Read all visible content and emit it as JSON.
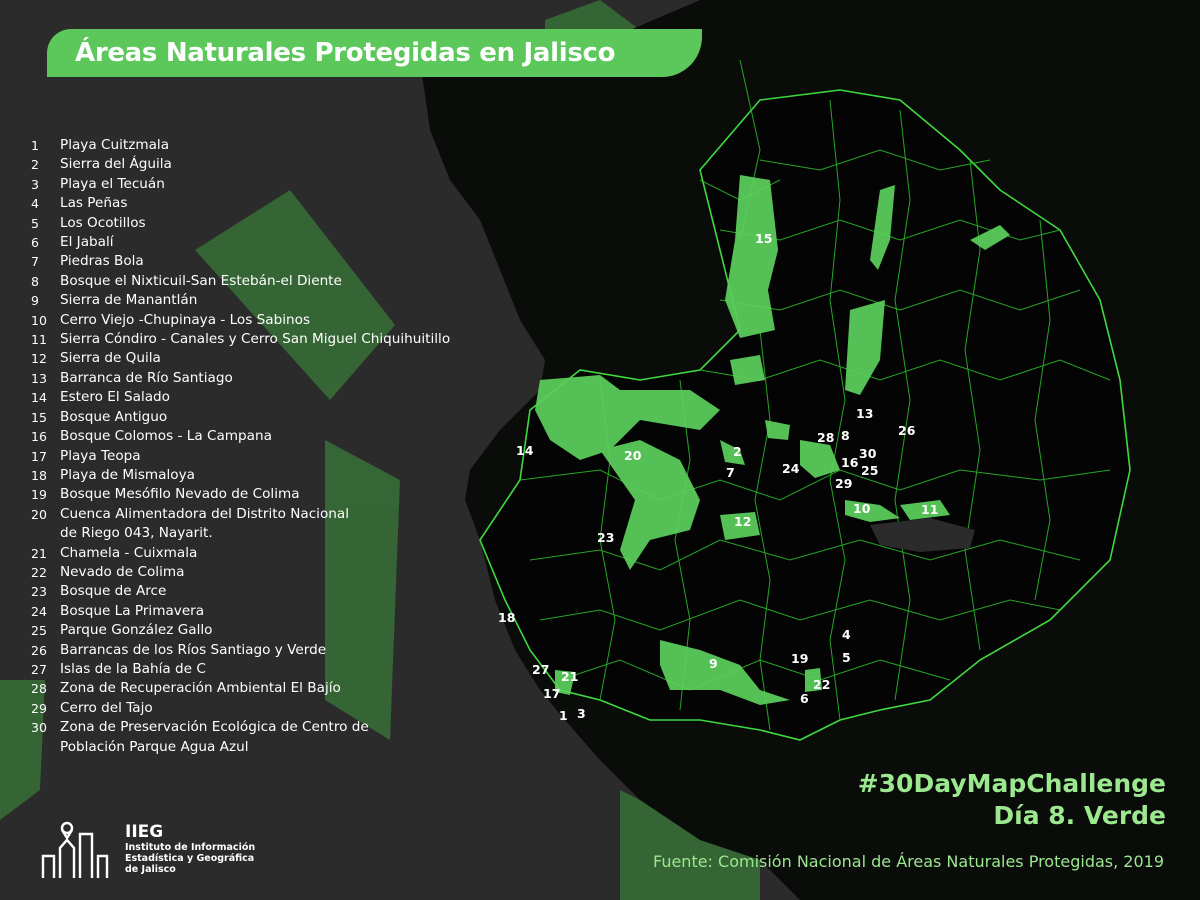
{
  "title": "Áreas Naturales Protegidas en Jalisco",
  "legend": [
    {
      "num": "1",
      "name": "Playa Cuitzmala"
    },
    {
      "num": "2",
      "name": "Sierra del Águila"
    },
    {
      "num": "3",
      "name": "Playa el Tecuán"
    },
    {
      "num": "4",
      "name": "Las Peñas"
    },
    {
      "num": "5",
      "name": "Los Ocotillos"
    },
    {
      "num": "6",
      "name": "El Jabalí"
    },
    {
      "num": "7",
      "name": "Piedras Bola"
    },
    {
      "num": "8",
      "name": "Bosque el Nixticuil-San Estebán-el Diente"
    },
    {
      "num": "9",
      "name": "Sierra de Manantlán"
    },
    {
      "num": "10",
      "name": "Cerro Viejo -Chupinaya - Los Sabinos"
    },
    {
      "num": "11",
      "name": "Sierra Cóndiro - Canales y Cerro San Miguel Chiquihuitillo"
    },
    {
      "num": "12",
      "name": "Sierra de Quila"
    },
    {
      "num": "13",
      "name": "Barranca de Río Santiago"
    },
    {
      "num": "14",
      "name": "Estero El Salado"
    },
    {
      "num": "15",
      "name": "Bosque Antiguo"
    },
    {
      "num": "16",
      "name": "Bosque Colomos - La Campana"
    },
    {
      "num": "17",
      "name": "Playa Teopa"
    },
    {
      "num": "18",
      "name": "Playa de Mismaloya"
    },
    {
      "num": "19",
      "name": "Bosque Mesófilo Nevado de Colima"
    },
    {
      "num": "20",
      "name": "Cuenca Alimentadora del Distrito Nacional",
      "name2": "de Riego 043, Nayarit."
    },
    {
      "num": "21",
      "name": "Chamela - Cuixmala"
    },
    {
      "num": "22",
      "name": "Nevado de Colima"
    },
    {
      "num": "23",
      "name": "Bosque de Arce"
    },
    {
      "num": "24",
      "name": "Bosque La Primavera"
    },
    {
      "num": "25",
      "name": "Parque González Gallo"
    },
    {
      "num": "26",
      "name": "Barrancas de los Ríos Santiago y Verde"
    },
    {
      "num": "27",
      "name": "Islas de la Bahía de C"
    },
    {
      "num": "28",
      "name": "Zona de Recuperación Ambiental El Bajío"
    },
    {
      "num": "29",
      "name": "Cerro del Tajo"
    },
    {
      "num": "30",
      "name": "Zona de Preservación Ecológica de Centro de",
      "name2": "Población Parque Agua Azul"
    }
  ],
  "map_labels": [
    "1",
    "2",
    "3",
    "4",
    "5",
    "6",
    "7",
    "8",
    "9",
    "10",
    "11",
    "12",
    "13",
    "14",
    "15",
    "16",
    "17",
    "18",
    "19",
    "20",
    "21",
    "22",
    "23",
    "24",
    "25",
    "26",
    "27",
    "28",
    "29",
    "30"
  ],
  "hashtag": "#30DayMapChallenge",
  "subtitle": "Día 8. Verde",
  "source": "Fuente: Comisión Nacional de Áreas Naturales Protegidas, 2019",
  "logo": {
    "abbr": "IIEG",
    "line1": "Instituto de Información",
    "line2": "Estadística y Geográfica",
    "line3": "de Jalisco"
  },
  "colors": {
    "background": "#2b2b2b",
    "land": "#050705",
    "border": "#3fd93f",
    "area": "#5cd05c",
    "title_bg": "#5cc85c",
    "accent_text": "#9be88f"
  }
}
